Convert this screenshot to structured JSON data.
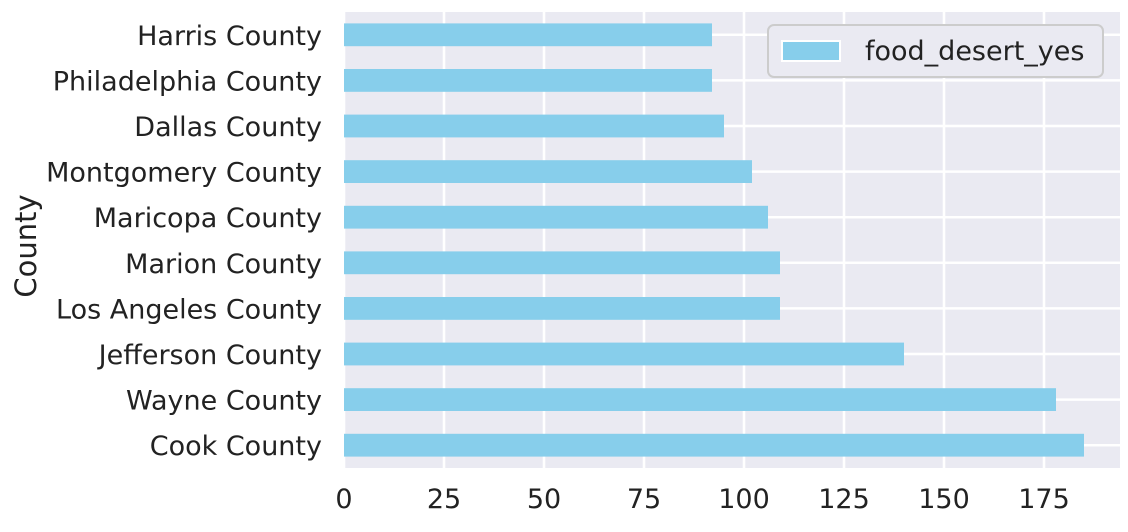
{
  "chart_data": {
    "type": "bar",
    "orientation": "horizontal",
    "title": "",
    "xlabel": "",
    "ylabel": "County",
    "categories": [
      "Cook County",
      "Wayne County",
      "Jefferson County",
      "Los Angeles County",
      "Marion County",
      "Maricopa County",
      "Montgomery County",
      "Dallas County",
      "Philadelphia County",
      "Harris County"
    ],
    "series": [
      {
        "name": "food_desert_yes",
        "values": [
          185,
          178,
          140,
          109,
          109,
          106,
          102,
          95,
          92,
          92
        ],
        "color": "#87ceeb"
      }
    ],
    "xlim": [
      0,
      194
    ],
    "xticks": [
      0,
      25,
      50,
      75,
      100,
      125,
      150,
      175
    ],
    "grid": true,
    "legend_position": "top-right",
    "background": "#eaeaf2",
    "grid_color": "#ffffff"
  }
}
